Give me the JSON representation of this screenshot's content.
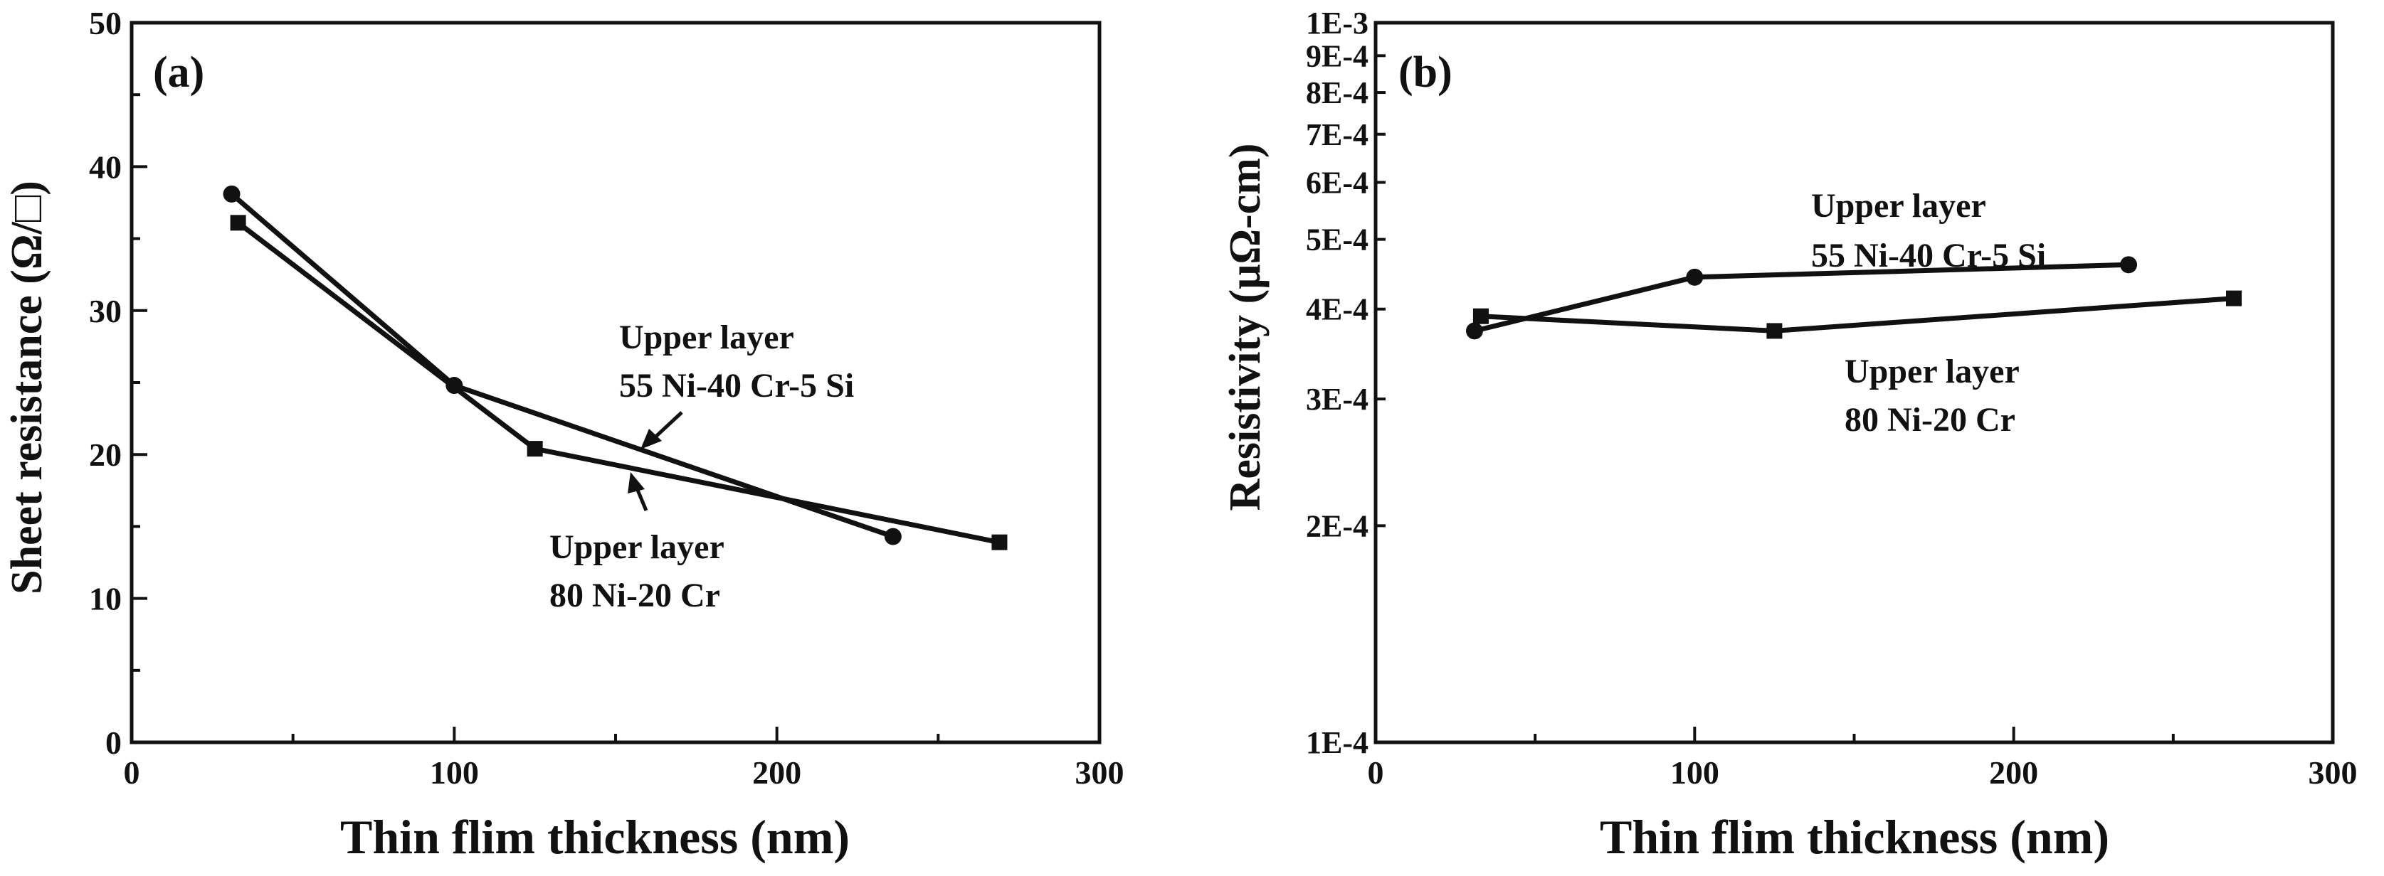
{
  "chart_data": [
    {
      "id": "a",
      "type": "line",
      "panel_label": "(a)",
      "xlabel": "Thin flim thickness (nm)",
      "ylabel": "Sheet resistance (Ω/□)",
      "xlim": [
        0,
        300
      ],
      "ylim": [
        0,
        50
      ],
      "yscale": "linear",
      "xticks": [
        0,
        100,
        200,
        300
      ],
      "yticks": [
        0,
        10,
        20,
        30,
        40,
        50
      ],
      "series": [
        {
          "name": "Upper layer 55 Ni-40 Cr-5 Si",
          "marker": "circle",
          "x": [
            31,
            100,
            236
          ],
          "y": [
            38.1,
            24.8,
            14.3
          ]
        },
        {
          "name": "Upper layer 80 Ni-20 Cr",
          "marker": "square",
          "x": [
            33,
            125,
            269
          ],
          "y": [
            36.1,
            20.4,
            13.9
          ]
        }
      ],
      "annotations": [
        {
          "line1": "Upper layer",
          "line2": "55 Ni-40 Cr-5 Si",
          "series": 0
        },
        {
          "line1": "Upper layer",
          "line2": "80 Ni-20 Cr",
          "series": 1
        }
      ]
    },
    {
      "id": "b",
      "type": "line",
      "panel_label": "(b)",
      "xlabel": "Thin flim thickness (nm)",
      "ylabel": "Resistivity (μΩ-cm)",
      "xlim": [
        0,
        300
      ],
      "ylim": [
        0.0001,
        0.001
      ],
      "yscale": "log",
      "xticks": [
        0,
        100,
        200,
        300
      ],
      "ytick_values": [
        0.0001,
        0.0002,
        0.0003,
        0.0004,
        0.0005,
        0.0006,
        0.0007,
        0.0008,
        0.0009,
        0.001
      ],
      "ytick_labels": [
        "1E-4",
        "2E-4",
        "3E-4",
        "4E-4",
        "5E-4",
        "6E-4",
        "7E-4",
        "8E-4",
        "9E-4",
        "1E-3"
      ],
      "series": [
        {
          "name": "Upper layer 55 Ni-40 Cr-5 Si",
          "marker": "circle",
          "x": [
            31,
            100,
            236
          ],
          "y": [
            0.000373,
            0.000443,
            0.000461
          ]
        },
        {
          "name": "Upper layer 80 Ni-20 Cr",
          "marker": "square",
          "x": [
            33,
            125,
            269
          ],
          "y": [
            0.000391,
            0.000373,
            0.000414
          ]
        }
      ],
      "annotations": [
        {
          "line1": "Upper layer",
          "line2": "55 Ni-40 Cr-5 Si",
          "series": 0
        },
        {
          "line1": "Upper layer",
          "line2": "80 Ni-20 Cr",
          "series": 1
        }
      ]
    }
  ]
}
